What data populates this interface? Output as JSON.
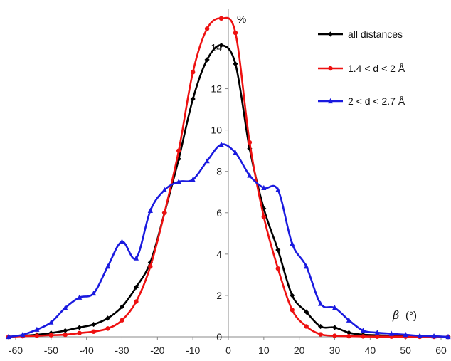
{
  "chart_data": {
    "type": "line",
    "title": "",
    "xlabel_symbol": "β",
    "xlabel_unit": "(°)",
    "ylabel": "%",
    "xlim": [
      -62,
      62
    ],
    "ylim": [
      0,
      15.6
    ],
    "xticks": [
      -60,
      -50,
      -40,
      -30,
      -20,
      -10,
      0,
      10,
      20,
      30,
      40,
      50,
      60
    ],
    "yticks": [
      0,
      2,
      4,
      6,
      8,
      10,
      12,
      14
    ],
    "grid": false,
    "legend_position": "top-right",
    "colors": {
      "all": "#000000",
      "short": "#ee1111",
      "long": "#1a1adf"
    },
    "series": [
      {
        "name": "all distances",
        "color": "#000000",
        "marker": "diamond",
        "x": [
          -62,
          -58,
          -54,
          -50,
          -46,
          -42,
          -38,
          -34,
          -30,
          -26,
          -22,
          -18,
          -14,
          -10,
          -6,
          -2,
          2,
          6,
          10,
          14,
          18,
          22,
          26,
          30,
          34,
          38,
          42,
          46,
          50,
          54,
          58,
          62
        ],
        "y": [
          0.0,
          0.05,
          0.1,
          0.18,
          0.3,
          0.45,
          0.6,
          0.9,
          1.45,
          2.4,
          3.6,
          6.0,
          8.6,
          11.5,
          13.4,
          14.1,
          13.2,
          9.1,
          6.2,
          4.2,
          2.0,
          1.2,
          0.5,
          0.45,
          0.2,
          0.1,
          0.08,
          0.05,
          0.05,
          0.03,
          0.02,
          0.0
        ]
      },
      {
        "name": "1.4 < d < 2 Å",
        "color": "#ee1111",
        "marker": "circle",
        "x": [
          -62,
          -58,
          -54,
          -50,
          -46,
          -42,
          -38,
          -34,
          -30,
          -26,
          -22,
          -18,
          -14,
          -10,
          -6,
          -2,
          2,
          6,
          10,
          14,
          18,
          22,
          26,
          30,
          34,
          38,
          42,
          46,
          50,
          54,
          58,
          62
        ],
        "y": [
          0.0,
          0.03,
          0.05,
          0.08,
          0.1,
          0.18,
          0.25,
          0.4,
          0.8,
          1.7,
          3.4,
          6.0,
          9.0,
          12.8,
          14.9,
          15.4,
          14.7,
          9.4,
          5.8,
          3.3,
          1.3,
          0.5,
          0.12,
          0.05,
          0.03,
          0.02,
          0.01,
          0.01,
          0.01,
          0.0,
          0.0,
          0.0
        ]
      },
      {
        "name": "2 < d < 2.7 Å",
        "color": "#1a1adf",
        "marker": "triangle",
        "x": [
          -62,
          -58,
          -54,
          -50,
          -46,
          -42,
          -38,
          -34,
          -30,
          -26,
          -22,
          -18,
          -14,
          -10,
          -6,
          -2,
          2,
          6,
          10,
          14,
          18,
          22,
          26,
          30,
          34,
          38,
          42,
          46,
          50,
          54,
          58,
          62
        ],
        "y": [
          0.0,
          0.1,
          0.35,
          0.7,
          1.4,
          1.9,
          2.1,
          3.4,
          4.6,
          3.8,
          6.1,
          7.1,
          7.5,
          7.6,
          8.5,
          9.3,
          8.9,
          7.8,
          7.2,
          7.1,
          4.5,
          3.4,
          1.6,
          1.4,
          0.8,
          0.3,
          0.2,
          0.15,
          0.1,
          0.05,
          0.03,
          0.0
        ]
      }
    ]
  }
}
